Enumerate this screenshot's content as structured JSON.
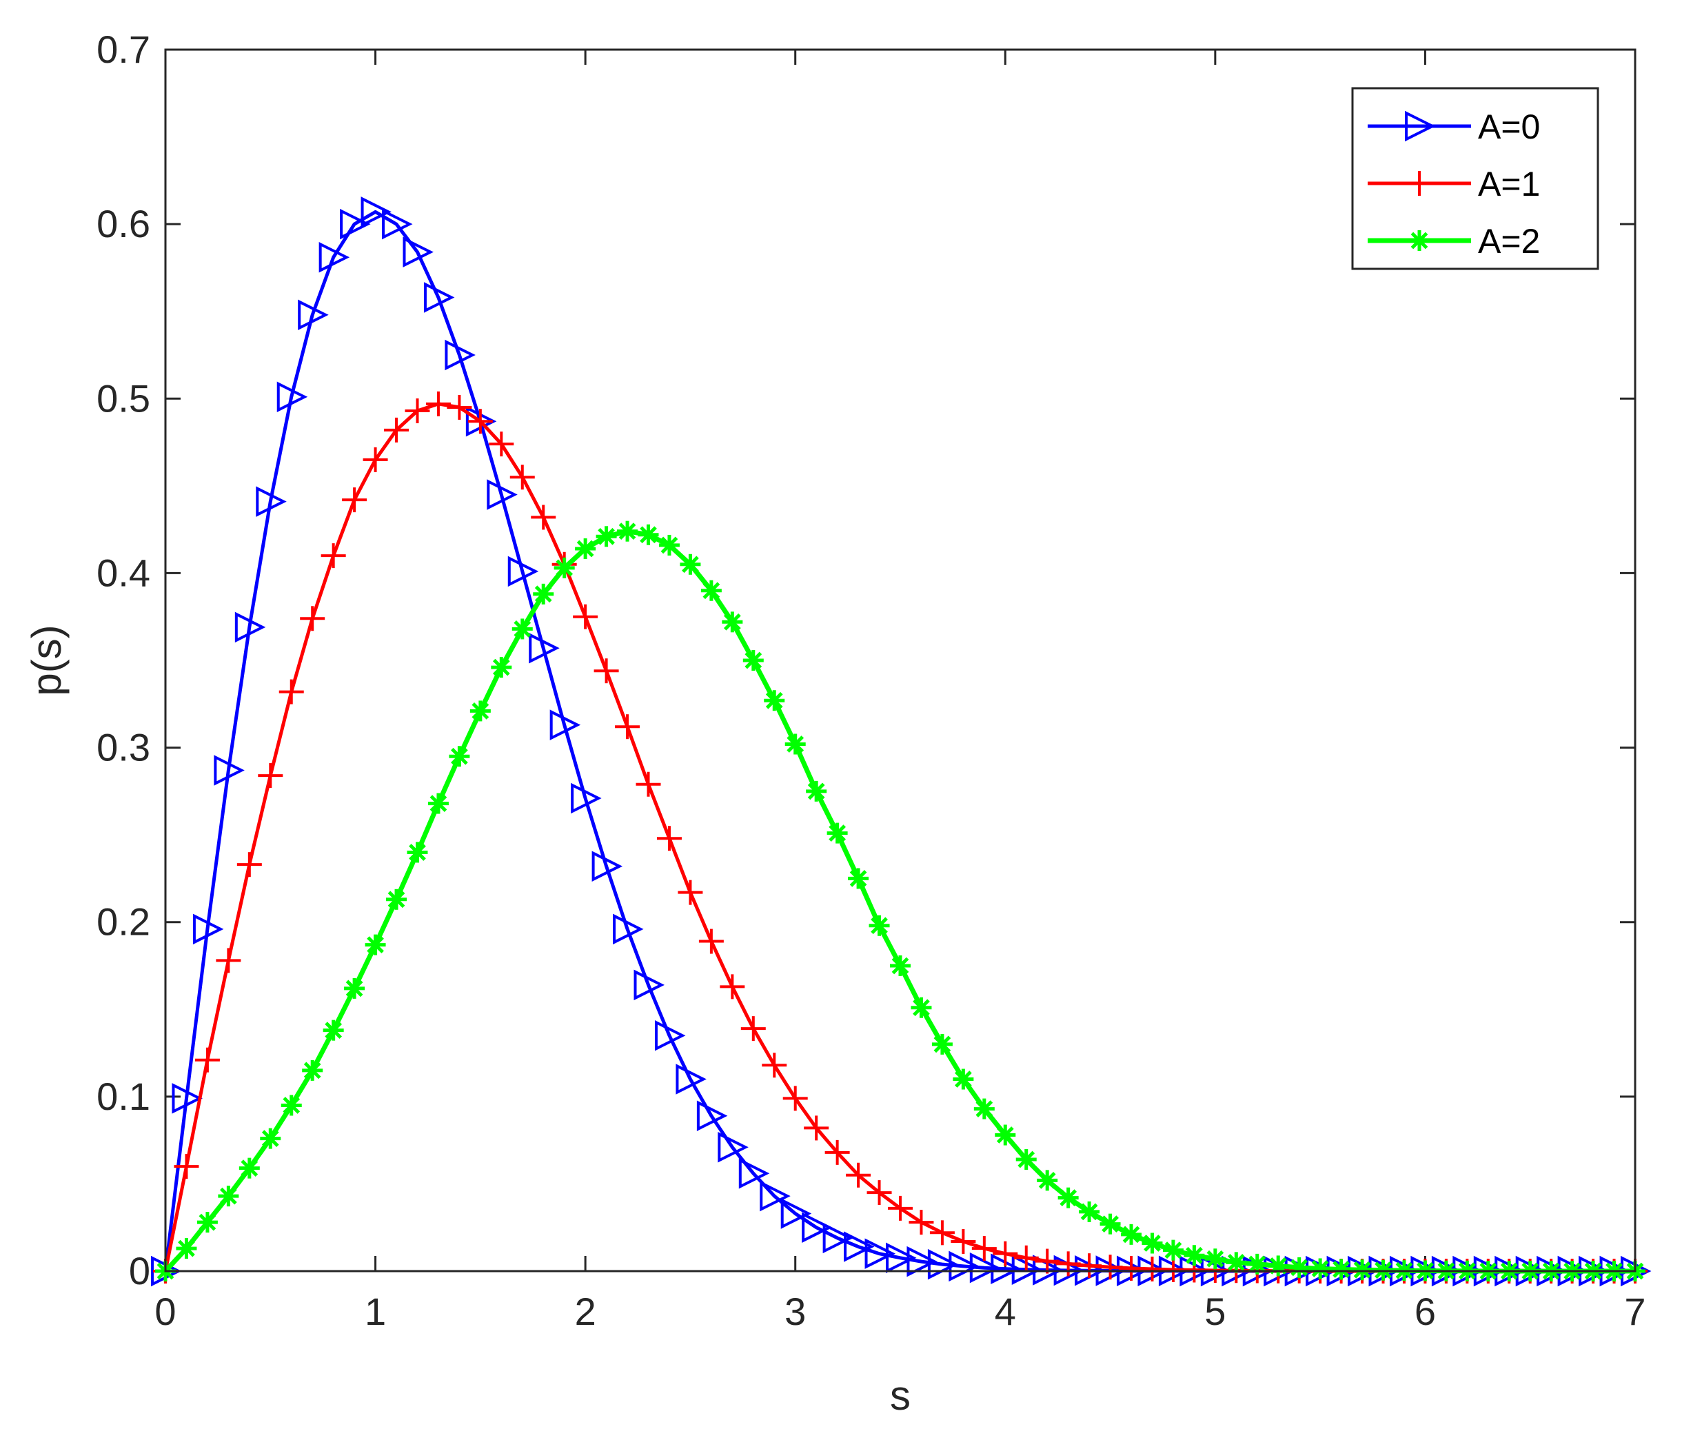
{
  "chart_data": {
    "type": "line",
    "title": "",
    "xlabel": "s",
    "ylabel": "p(s)",
    "xlim": [
      0,
      7
    ],
    "ylim": [
      0,
      0.7
    ],
    "xticks": [
      0,
      1,
      2,
      3,
      4,
      5,
      6,
      7
    ],
    "yticks": [
      0,
      0.1,
      0.2,
      0.3,
      0.4,
      0.5,
      0.6,
      0.7
    ],
    "grid": false,
    "box": true,
    "legend": {
      "position": "top-right"
    },
    "x": [
      0,
      0.1,
      0.2,
      0.3,
      0.4,
      0.5,
      0.6,
      0.7,
      0.8,
      0.9,
      1.0,
      1.1,
      1.2,
      1.3,
      1.4,
      1.5,
      1.6,
      1.7,
      1.8,
      1.9,
      2.0,
      2.1,
      2.2,
      2.3,
      2.4,
      2.5,
      2.6,
      2.7,
      2.8,
      2.9,
      3.0,
      3.1,
      3.2,
      3.3,
      3.4,
      3.5,
      3.6,
      3.7,
      3.8,
      3.9,
      4.0,
      4.1,
      4.2,
      4.3,
      4.4,
      4.5,
      4.6,
      4.7,
      4.8,
      4.9,
      5.0,
      5.1,
      5.2,
      5.3,
      5.4,
      5.5,
      5.6,
      5.7,
      5.8,
      5.9,
      6.0,
      6.1,
      6.2,
      6.3,
      6.4,
      6.5,
      6.6,
      6.7,
      6.8,
      6.9,
      7.0
    ],
    "series": [
      {
        "name": "A=0",
        "color": "#0000ff",
        "marker": "triangle-right",
        "values": [
          0,
          0.099,
          0.196,
          0.287,
          0.369,
          0.441,
          0.501,
          0.548,
          0.581,
          0.6,
          0.607,
          0.6,
          0.584,
          0.558,
          0.525,
          0.487,
          0.445,
          0.401,
          0.357,
          0.313,
          0.271,
          0.232,
          0.196,
          0.164,
          0.135,
          0.11,
          0.089,
          0.071,
          0.056,
          0.043,
          0.033,
          0.025,
          0.019,
          0.014,
          0.01,
          0.0076,
          0.0055,
          0.0039,
          0.0028,
          0.0019,
          0.0013,
          0.0009,
          0.0006,
          0.0004,
          0.0003,
          0.0002,
          0.0001,
          0.0001,
          0.0001,
          0,
          0,
          0,
          0,
          0,
          0,
          0,
          0,
          0,
          0,
          0,
          0,
          0,
          0,
          0,
          0,
          0,
          0,
          0,
          0,
          0,
          0
        ]
      },
      {
        "name": "A=1",
        "color": "#ff0000",
        "marker": "plus",
        "values": [
          0,
          0.06,
          0.121,
          0.178,
          0.233,
          0.284,
          0.332,
          0.374,
          0.41,
          0.442,
          0.465,
          0.482,
          0.493,
          0.497,
          0.495,
          0.487,
          0.474,
          0.455,
          0.432,
          0.405,
          0.375,
          0.344,
          0.312,
          0.279,
          0.248,
          0.217,
          0.189,
          0.163,
          0.139,
          0.118,
          0.099,
          0.082,
          0.068,
          0.055,
          0.045,
          0.036,
          0.028,
          0.022,
          0.017,
          0.013,
          0.01,
          0.0076,
          0.0057,
          0.0042,
          0.0031,
          0.0023,
          0.0016,
          0.0012,
          0.0008,
          0.0006,
          0.0004,
          0.0003,
          0.0002,
          0.0001,
          0.0001,
          0,
          0,
          0,
          0,
          0,
          0,
          0,
          0,
          0,
          0,
          0,
          0,
          0,
          0,
          0,
          0
        ]
      },
      {
        "name": "A=2",
        "color": "#00ff00",
        "marker": "asterisk",
        "values": [
          0,
          0.013,
          0.028,
          0.043,
          0.059,
          0.076,
          0.095,
          0.115,
          0.138,
          0.162,
          0.187,
          0.213,
          0.24,
          0.268,
          0.295,
          0.321,
          0.346,
          0.368,
          0.388,
          0.403,
          0.414,
          0.421,
          0.424,
          0.422,
          0.416,
          0.405,
          0.39,
          0.372,
          0.35,
          0.327,
          0.302,
          0.275,
          0.251,
          0.225,
          0.198,
          0.175,
          0.151,
          0.13,
          0.11,
          0.093,
          0.078,
          0.064,
          0.052,
          0.042,
          0.034,
          0.027,
          0.021,
          0.016,
          0.012,
          0.009,
          0.007,
          0.005,
          0.004,
          0.003,
          0.002,
          0.0014,
          0.001,
          0.0007,
          0.0005,
          0.0003,
          0.0002,
          0.0001,
          0.0001,
          0,
          0,
          0,
          0,
          0,
          0,
          0,
          0
        ]
      }
    ]
  }
}
